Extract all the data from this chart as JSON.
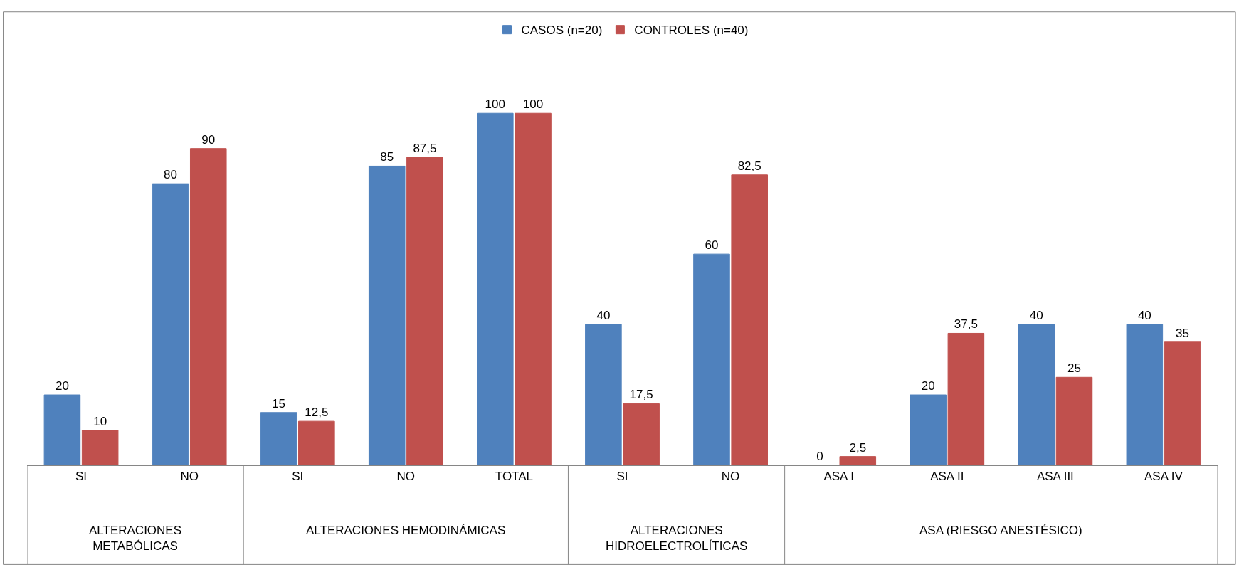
{
  "chart_data": {
    "type": "bar",
    "categories": [
      "SI",
      "NO",
      "SI",
      "NO",
      "TOTAL",
      "SI",
      "NO",
      "ASA I",
      "ASA II",
      "ASA III",
      "ASA IV"
    ],
    "series": [
      {
        "name": "CASOS (n=20)",
        "color": "#4f81bd",
        "values": [
          20,
          80,
          15,
          85,
          100,
          40,
          60,
          0,
          20,
          40,
          40
        ],
        "value_labels": [
          "20",
          "80",
          "15",
          "85",
          "100",
          "40",
          "60",
          "0",
          "20",
          "40",
          "40"
        ]
      },
      {
        "name": "CONTROLES (n=40)",
        "color": "#c0504d",
        "values": [
          10,
          90,
          12.5,
          87.5,
          100,
          17.5,
          82.5,
          2.5,
          37.5,
          25,
          35
        ],
        "value_labels": [
          "10",
          "90",
          "12,5",
          "87,5",
          "100",
          "17,5",
          "82,5",
          "2,5",
          "37,5",
          "25",
          "35"
        ]
      }
    ],
    "annotations": [
      "ALTERACIONES\nMETABÓLICAS",
      "ALTERACIONES HEMODINÁMICAS",
      "ALTERACIONES\nHIDROELECTROLÍTICAS",
      "ASA (RIESGO ANESTÉSICO)"
    ],
    "legend": "top"
  }
}
